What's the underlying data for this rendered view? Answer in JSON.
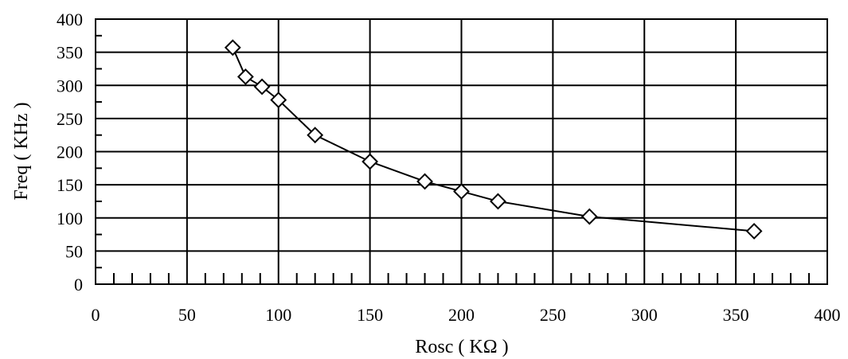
{
  "chart_data": {
    "type": "line",
    "xlabel": "Rosc ( KΩ )",
    "ylabel": "Freq ( KHz )",
    "xlim": [
      0,
      400
    ],
    "ylim": [
      0,
      400
    ],
    "x_ticks": [
      0,
      50,
      100,
      150,
      200,
      250,
      300,
      350,
      400
    ],
    "y_ticks": [
      0,
      50,
      100,
      150,
      200,
      250,
      300,
      350,
      400
    ],
    "grid": true,
    "marker": "diamond",
    "series": [
      {
        "x": [
          75,
          82,
          91,
          100,
          120,
          150,
          180,
          200,
          220,
          270,
          360
        ],
        "y": [
          357,
          313,
          298,
          278,
          225,
          185,
          155,
          140,
          125,
          102,
          80
        ]
      }
    ]
  }
}
